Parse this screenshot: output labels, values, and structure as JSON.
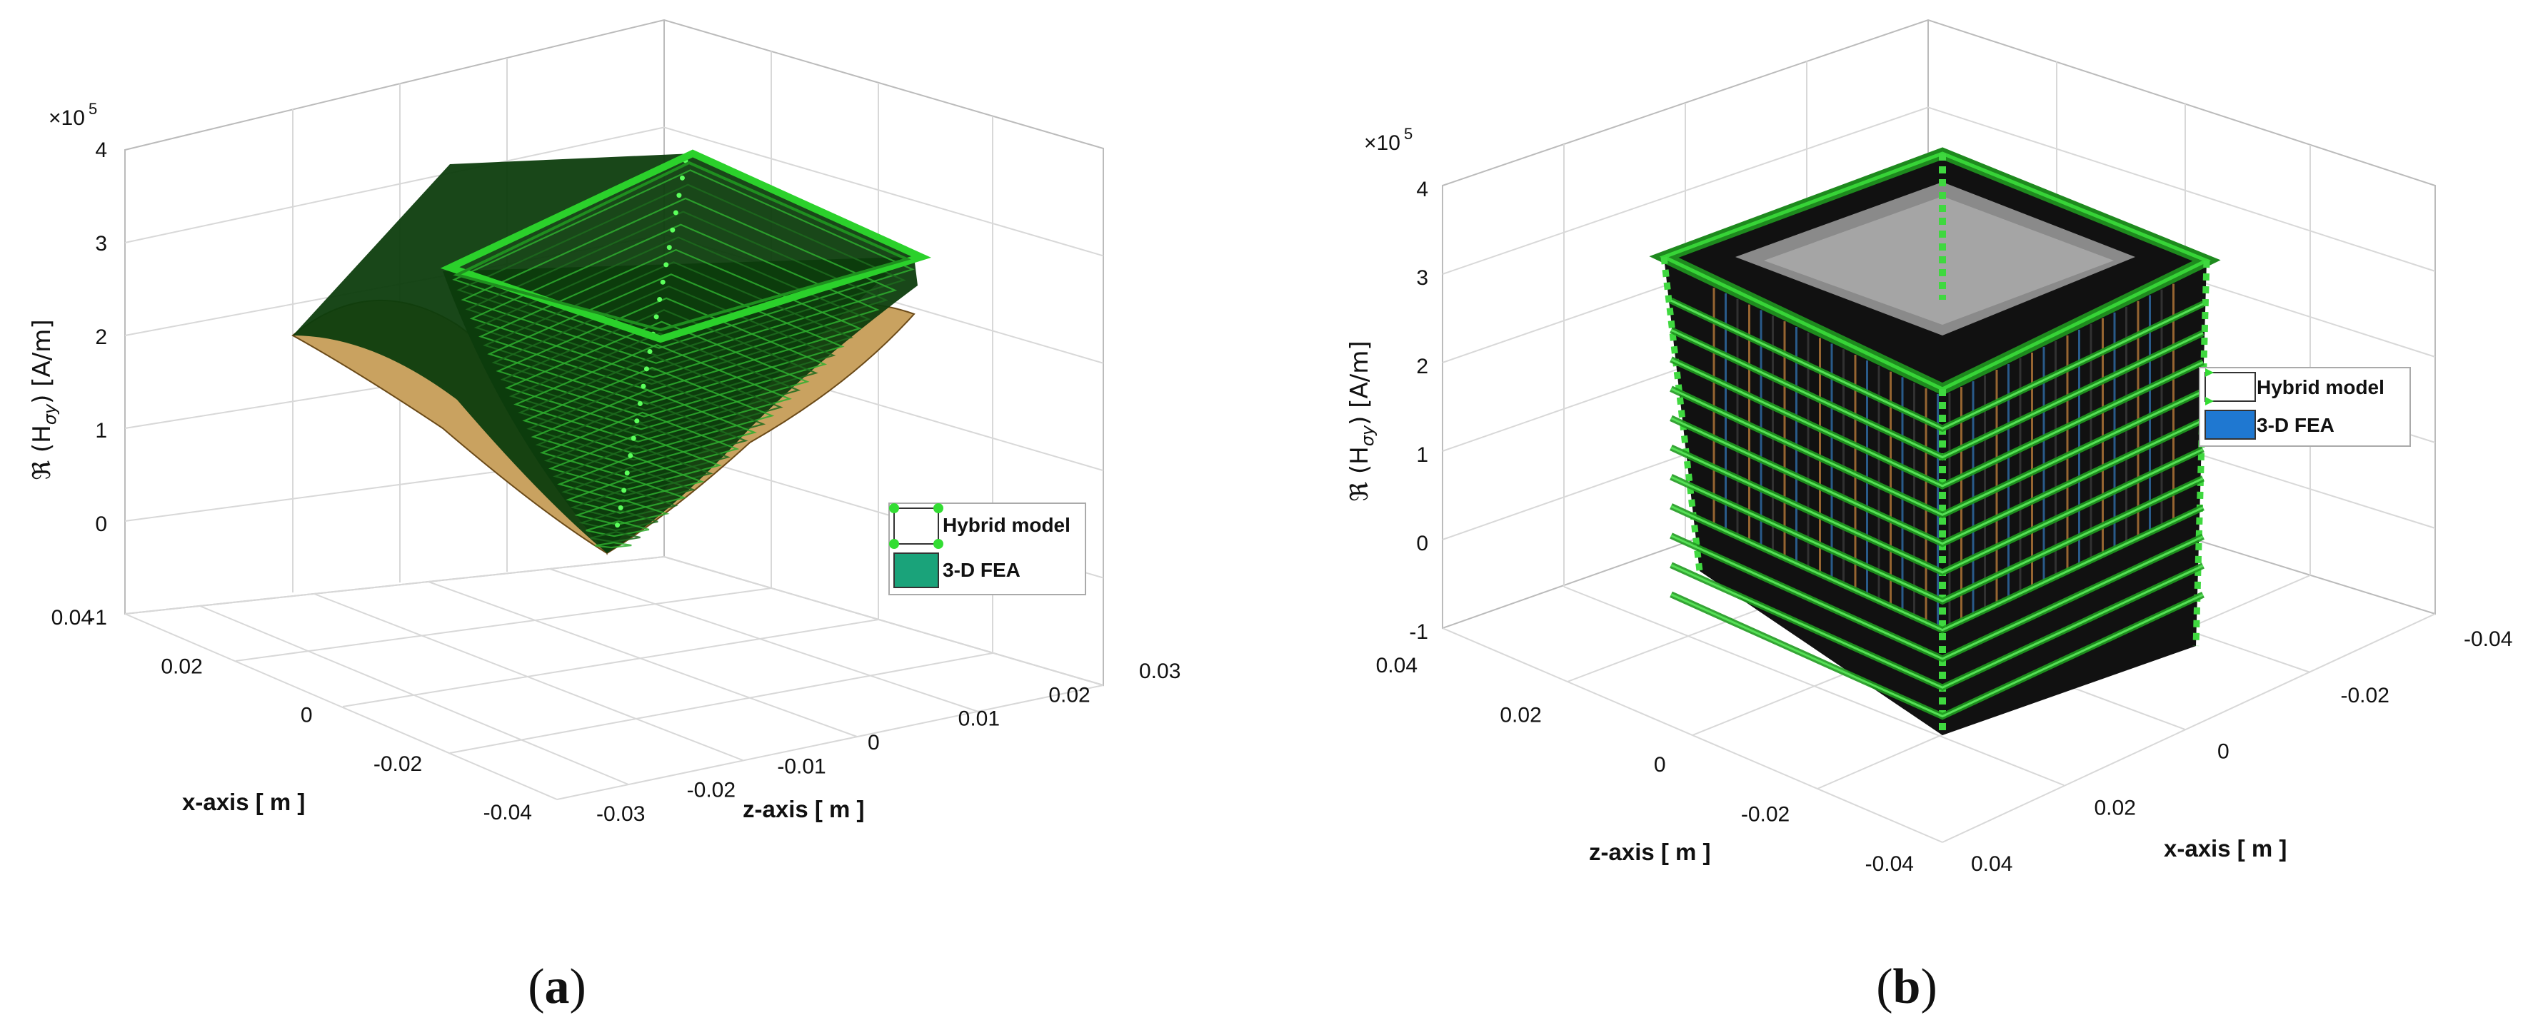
{
  "chart_data": [
    {
      "panel": "a",
      "type": "surface3d",
      "caption": "a",
      "ylabel": "ℜ (H",
      "ylabel_sub": "σy",
      "ylabel_unit": ") [A/m]",
      "exponent_base": "×10",
      "exponent_power": "5",
      "xlabel": "x-axis [ m ]",
      "zlabel": "z-axis [ m ]",
      "yticks": [
        "4",
        "3",
        "2",
        "1",
        "0",
        "-1"
      ],
      "xticks": [
        "0.04",
        "0.02",
        "0",
        "-0.02",
        "-0.04"
      ],
      "zticks": [
        "-0.03",
        "-0.02",
        "-0.01",
        "0",
        "0.01",
        "0.02",
        "0.03"
      ],
      "ylim": [
        -100000,
        400000
      ],
      "xlim": [
        -0.04,
        0.04
      ],
      "zlim": [
        -0.03,
        0.03
      ],
      "grid": true,
      "legend_position": "right",
      "series": [
        {
          "name": "Hybrid model",
          "color": "#22c322"
        },
        {
          "name": "3-D FEA",
          "color": "#1aa37a"
        }
      ],
      "surface": {
        "edge_value": 280000,
        "center_value": -50000,
        "corner_value": 220000
      }
    },
    {
      "panel": "b",
      "type": "surface3d",
      "caption": "b",
      "ylabel": "ℜ (H",
      "ylabel_sub": "σy",
      "ylabel_unit": ") [A/m]",
      "exponent_base": "×10",
      "exponent_power": "5",
      "xlabel": "x-axis [ m ]",
      "zlabel": "z-axis [ m ]",
      "yticks": [
        "4",
        "3",
        "2",
        "1",
        "0",
        "-1"
      ],
      "zticks": [
        "0.04",
        "0.02",
        "0",
        "-0.02",
        "-0.04"
      ],
      "xticks": [
        "-0.04",
        "-0.02",
        "0",
        "0.02",
        "0.04"
      ],
      "ylim": [
        -100000,
        400000
      ],
      "xlim": [
        -0.04,
        0.04
      ],
      "zlim": [
        -0.04,
        0.04
      ],
      "grid": true,
      "legend_position": "right",
      "series": [
        {
          "name": "Hybrid model",
          "color": "#22c322"
        },
        {
          "name": "3-D FEA",
          "color": "#1f78d1"
        }
      ],
      "surface": {
        "top_value": 300000,
        "bottom_value": -80000
      }
    }
  ]
}
